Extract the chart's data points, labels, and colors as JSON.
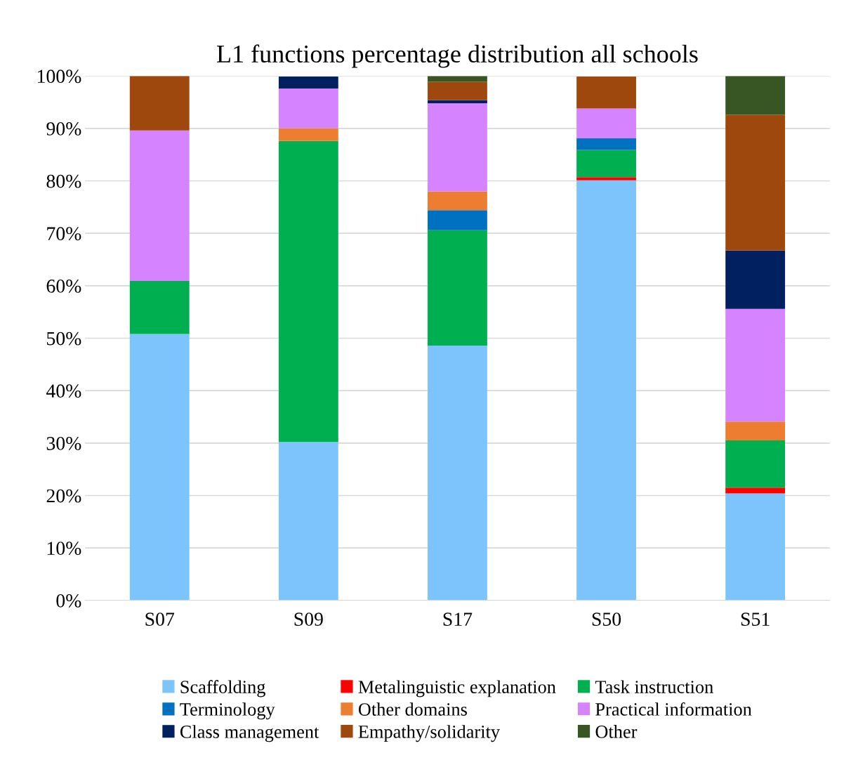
{
  "chart_data": {
    "type": "bar",
    "stacked": true,
    "title": "L1 functions percentage distribution all schools",
    "categories": [
      "S07",
      "S09",
      "S17",
      "S50",
      "S51"
    ],
    "series": [
      {
        "name": "Scaffolding",
        "color": "#7ec4fc",
        "values": [
          50.8,
          30.2,
          48.6,
          80.1,
          20.4
        ]
      },
      {
        "name": "Metalinguistic explanation",
        "color": "#ff0000",
        "values": [
          0,
          0,
          0,
          0.6,
          1.1
        ]
      },
      {
        "name": "Task instruction",
        "color": "#00b050",
        "values": [
          10.1,
          57.4,
          22.0,
          5.2,
          9.0
        ]
      },
      {
        "name": "Terminology",
        "color": "#0070c0",
        "values": [
          0,
          0,
          3.8,
          2.2,
          0
        ]
      },
      {
        "name": "Other domains",
        "color": "#ed7d31",
        "values": [
          0,
          2.4,
          3.6,
          0,
          3.6
        ]
      },
      {
        "name": "Practical information",
        "color": "#d683ff",
        "values": [
          28.7,
          7.6,
          16.8,
          5.7,
          21.5
        ]
      },
      {
        "name": "Class management",
        "color": "#002060",
        "values": [
          0,
          2.3,
          0.6,
          0,
          11.1
        ]
      },
      {
        "name": "Empathy/solidarity",
        "color": "#9e480e",
        "values": [
          10.4,
          0,
          3.5,
          6.1,
          25.9
        ]
      },
      {
        "name": "Other",
        "color": "#375623",
        "values": [
          0,
          0,
          1.1,
          null,
          7.4
        ]
      }
    ],
    "ylim": [
      0,
      100
    ],
    "yticks": [
      {
        "value": 0,
        "label": "0%"
      },
      {
        "value": 10,
        "label": "10%"
      },
      {
        "value": 20,
        "label": "20%"
      },
      {
        "value": 30,
        "label": "30%"
      },
      {
        "value": 40,
        "label": "40%"
      },
      {
        "value": 50,
        "label": "50%"
      },
      {
        "value": 60,
        "label": "60%"
      },
      {
        "value": 70,
        "label": "70%"
      },
      {
        "value": 80,
        "label": "80%"
      },
      {
        "value": 90,
        "label": "90%"
      },
      {
        "value": 100,
        "label": "100%"
      }
    ],
    "grid": "y",
    "legend": "bottom"
  }
}
